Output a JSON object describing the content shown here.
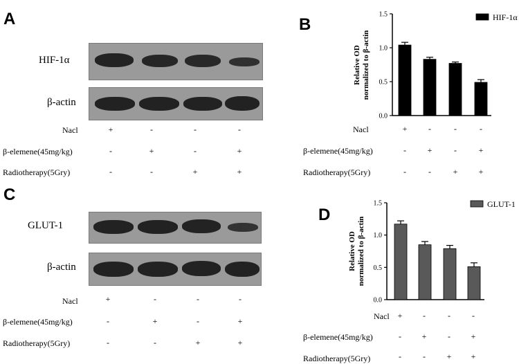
{
  "panels": {
    "a": {
      "letter": "A",
      "target_label": "HIF-1α",
      "control_label": "β-actin"
    },
    "c": {
      "letter": "C",
      "target_label": "GLUT-1",
      "control_label": "β-actin"
    }
  },
  "conditions": {
    "labels": [
      "Nacl",
      "β-elemene(45mg/kg)",
      "Radiotherapy(5Gry)"
    ],
    "signs": [
      [
        "+",
        "-",
        "-",
        "-"
      ],
      [
        "-",
        "+",
        "-",
        "+"
      ],
      [
        "-",
        "-",
        "+",
        "+"
      ]
    ]
  },
  "colors": {
    "bar_b": "#000000",
    "bar_d": "#595959",
    "blot_bg": "#9a9a9a",
    "band": "#222222"
  },
  "chart_data": [
    {
      "panel": "B",
      "type": "bar",
      "ylabel": "Relative OD normalized to β-actin",
      "ylabel_lines": [
        "Relative OD",
        "normalized to β-actin"
      ],
      "ylim": [
        0,
        1.5
      ],
      "yticks": [
        "0.0",
        "0.5",
        "1.0",
        "1.5"
      ],
      "categories": [
        "Nacl",
        "β-elemene",
        "Radiotherapy",
        "β-elemene+Radiotherapy"
      ],
      "series": [
        {
          "name": "HIF-1α",
          "values": [
            1.04,
            0.83,
            0.77,
            0.49
          ],
          "errors": [
            0.04,
            0.03,
            0.02,
            0.04
          ]
        }
      ],
      "legend": "top-right"
    },
    {
      "panel": "D",
      "type": "bar",
      "ylabel": "Relative OD normalized to β-actin",
      "ylabel_lines": [
        "Relative OD",
        "normalized to β-actin"
      ],
      "ylim": [
        0,
        1.5
      ],
      "yticks": [
        "0.0",
        "0.5",
        "1.0",
        "1.5"
      ],
      "categories": [
        "Nacl",
        "β-elemene",
        "Radiotherapy",
        "β-elemene+Radiotherapy"
      ],
      "series": [
        {
          "name": "GLUT-1",
          "values": [
            1.17,
            0.85,
            0.79,
            0.51
          ],
          "errors": [
            0.05,
            0.05,
            0.05,
            0.06
          ]
        }
      ],
      "legend": "top-right"
    }
  ]
}
